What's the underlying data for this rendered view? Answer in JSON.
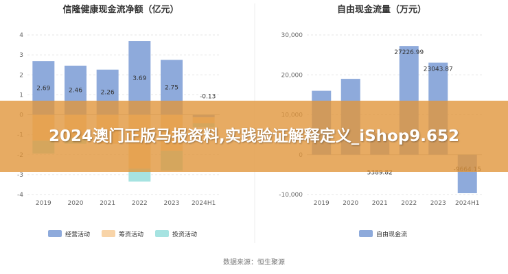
{
  "chart_data": [
    {
      "type": "bar",
      "stacked": true,
      "title": "信隆健康现金流净额（亿元）",
      "categories": [
        "2019",
        "2020",
        "2021",
        "2022",
        "2023",
        "2024H1"
      ],
      "ylim": [
        -4,
        4
      ],
      "yticks": [
        "4",
        "3",
        "2",
        "1",
        "0",
        "-1",
        "-2",
        "-3",
        "-4"
      ],
      "ytick_values": [
        4,
        3,
        2,
        1,
        0,
        -1,
        -2,
        -3,
        -4
      ],
      "series": [
        {
          "name": "经营活动",
          "color": "#8eaadb",
          "values": [
            2.69,
            2.46,
            2.26,
            3.69,
            2.75,
            -0.13
          ]
        },
        {
          "name": "筹资活动",
          "color": "#f8d4a8",
          "values": [
            -1.3,
            -1.15,
            -1.45,
            -2.7,
            -1.8,
            -0.3
          ]
        },
        {
          "name": "投资活动",
          "color": "#a6e3e1",
          "values": [
            -0.65,
            -0.3,
            0,
            -0.65,
            -1.0,
            -0.2
          ]
        }
      ],
      "data_labels": [
        "2.69",
        "2.46",
        "2.26",
        "3.69",
        "2.75",
        "-0.13"
      ],
      "grid": true,
      "legend": "bottom"
    },
    {
      "type": "bar",
      "title": "自由现金流量（万元）",
      "categories": [
        "2019",
        "2020",
        "2021",
        "2022",
        "2023",
        "2024H1"
      ],
      "ylim": [
        -10000,
        30000
      ],
      "yticks": [
        "30,000",
        "20,000",
        "10,000",
        "0",
        "-10,000"
      ],
      "ytick_values": [
        30000,
        20000,
        10000,
        0,
        -10000
      ],
      "series": [
        {
          "name": "自由现金流",
          "color": "#8eaadb",
          "values": [
            16000,
            19000,
            5389.82,
            27226.99,
            23043.87,
            -9664.15
          ]
        }
      ],
      "data_labels": [
        "",
        "",
        "5389.82",
        "27226.99",
        "23043.87",
        "-9664.15"
      ],
      "grid": true,
      "legend": "bottom"
    }
  ],
  "footer": {
    "source": "数据来源：恒生聚源"
  },
  "banner": {
    "text": "2024澳门正版马报资料,实践验证解释定义_iShop9.652"
  }
}
